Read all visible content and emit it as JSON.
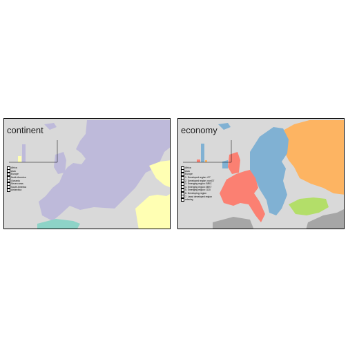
{
  "colors": {
    "ocean": "#d9d9d9",
    "europe": "#bebada",
    "africa": "#ffffb3",
    "asia": "#bebada",
    "north_africa_sea": "#8dd3c7",
    "advanced": "#fb8072",
    "emerging": "#80b1d3",
    "russia": "#fdb462",
    "turkey": "#b3de69",
    "other": "#a6a6a6"
  },
  "panels": [
    {
      "title": "continent",
      "legend": [
        "Africa",
        "Asia",
        "Europe",
        "North America",
        "Oceania",
        "Seven seas",
        "South America",
        "Antarctica",
        "",
        "",
        "",
        ""
      ]
    },
    {
      "title": "economy",
      "legend": [
        "Africa",
        "Asia",
        "Europe",
        "1. Developed region: G7",
        "2. Developed region: nonG7",
        "3. Emerging region: BRIC",
        "4. Emerging region: MIKT",
        "5. Emerging region: G20",
        "6. Developing region",
        "7. Least developed region",
        "missing",
        ""
      ]
    }
  ]
}
